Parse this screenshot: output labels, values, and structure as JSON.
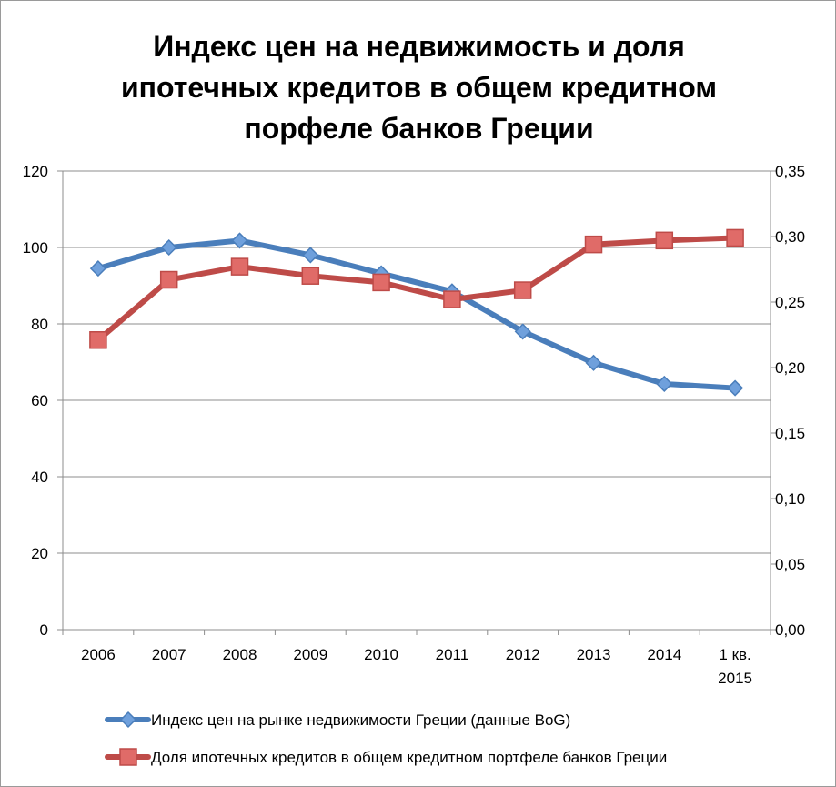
{
  "chart_data": {
    "type": "line",
    "title_lines": [
      "Индекс цен на недвижимость и доля",
      "ипотечных кредитов в общем кредитном",
      "порфеле банков Греции"
    ],
    "categories": [
      [
        "2006"
      ],
      [
        "2007"
      ],
      [
        "2008"
      ],
      [
        "2009"
      ],
      [
        "2010"
      ],
      [
        "2011"
      ],
      [
        "2012"
      ],
      [
        "2013"
      ],
      [
        "2014"
      ],
      [
        "1 кв.",
        "2015"
      ]
    ],
    "y_left": {
      "range": [
        0,
        120
      ],
      "ticks": [
        "0",
        "20",
        "40",
        "60",
        "80",
        "100",
        "120"
      ],
      "tick_values": [
        0,
        20,
        40,
        60,
        80,
        100,
        120
      ]
    },
    "y_right": {
      "range": [
        0,
        0.35
      ],
      "ticks": [
        "0,00",
        "0,05",
        "0,10",
        "0,15",
        "0,20",
        "0,25",
        "0,30",
        "0,35"
      ],
      "tick_values": [
        0,
        0.05,
        0.1,
        0.15,
        0.2,
        0.25,
        0.3,
        0.35
      ]
    },
    "grid": true,
    "legend_position": "bottom",
    "series": [
      {
        "name": "Индекс цен на рынке недвижимости Греции (данные BoG)",
        "axis": "left",
        "marker": "diamond",
        "color": "#4a7ebb",
        "marker_fill": "#6fa0dc",
        "values": [
          94.5,
          100,
          101.8,
          98,
          93.2,
          88.5,
          78,
          69.8,
          64.3,
          63.2
        ]
      },
      {
        "name": "Доля ипотечных кредитов в общем кредитном портфеле банков Греции",
        "axis": "right",
        "marker": "square",
        "color": "#be4b48",
        "marker_fill": "#e06b68",
        "values": [
          0.221,
          0.267,
          0.277,
          0.27,
          0.265,
          0.252,
          0.259,
          0.294,
          0.297,
          0.299
        ]
      }
    ]
  }
}
